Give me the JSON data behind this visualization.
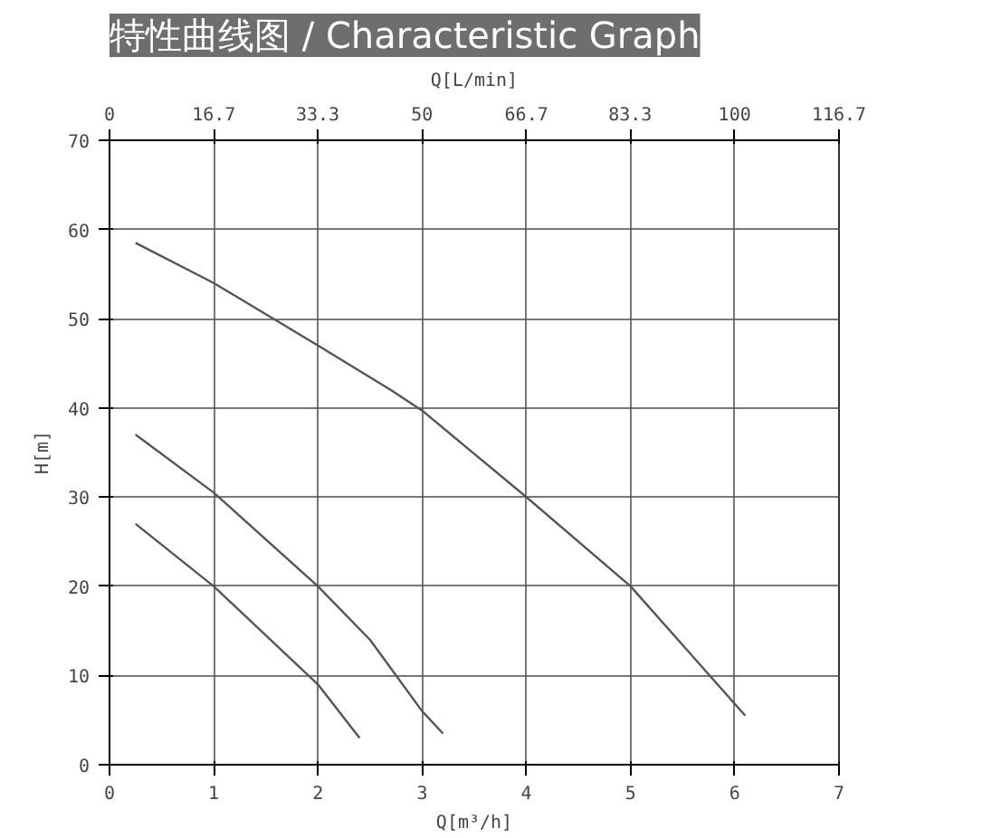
{
  "chart_data": {
    "type": "line",
    "title": "特性曲线图 / Characteristic Graph",
    "xlabel": "Q[m³/h]",
    "x2label": "Q[L/min]",
    "ylabel": "H[m]",
    "xlim": [
      0,
      7
    ],
    "xticks": [
      0,
      1,
      2,
      3,
      4,
      5,
      6,
      7
    ],
    "x2lim": [
      0,
      116.7
    ],
    "x2ticks": [
      0,
      16.7,
      33.3,
      50,
      66.7,
      83.3,
      100,
      116.7
    ],
    "ylim": [
      0,
      70
    ],
    "yticks": [
      0,
      10,
      20,
      30,
      40,
      50,
      60,
      70
    ],
    "grid": true,
    "marker": "none",
    "line_style": "solid",
    "series": [
      {
        "color": "#555555",
        "x": [
          0.25,
          1,
          2,
          2.7,
          3,
          4,
          5,
          6.1
        ],
        "values": [
          58.5,
          54,
          47,
          42,
          39.7,
          30,
          20,
          5.5
        ]
      },
      {
        "color": "#555555",
        "x": [
          0.25,
          1,
          2,
          2.5,
          3,
          3.2
        ],
        "values": [
          37,
          30.5,
          20,
          14,
          6,
          3.5
        ]
      },
      {
        "color": "#555555",
        "x": [
          0.25,
          1,
          2,
          2.4
        ],
        "values": [
          27,
          20,
          9,
          3
        ]
      }
    ]
  }
}
